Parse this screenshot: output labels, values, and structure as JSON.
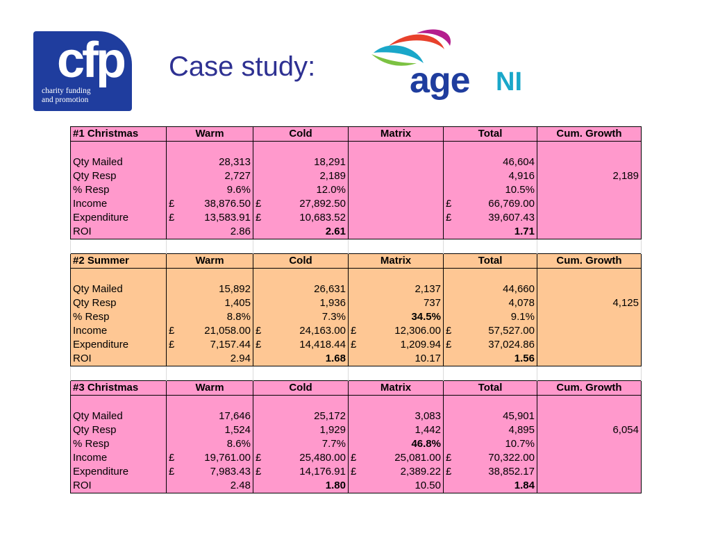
{
  "header": {
    "cfp_mark": "cfp",
    "cfp_tagline_1": "charity funding",
    "cfp_tagline_2": "and promotion",
    "title": "Case study:",
    "age_word": "age",
    "ni_word": "NI"
  },
  "columns": [
    "Warm",
    "Cold",
    "Matrix",
    "Total",
    "Cum. Growth"
  ],
  "sections": [
    {
      "title": "#1 Christmas",
      "color": "#ff99cc",
      "cum_growth": "2,189",
      "rows": {
        "qty_mailed": {
          "label": "Qty Mailed",
          "warm": "28,313",
          "cold": "18,291",
          "matrix": "",
          "total": "46,604"
        },
        "qty_resp": {
          "label": "Qty Resp",
          "warm": "2,727",
          "cold": "2,189",
          "matrix": "",
          "total": "4,916"
        },
        "pct_resp": {
          "label": "% Resp",
          "warm": "9.6%",
          "cold": "12.0%",
          "matrix": "",
          "total": "10.5%"
        },
        "income": {
          "label": "Income",
          "warm": "38,876.50",
          "cold": "27,892.50",
          "matrix": "",
          "total": "66,769.00"
        },
        "expenditure": {
          "label": "Expenditure",
          "warm": "13,583.91",
          "cold": "10,683.52",
          "matrix": "",
          "total": "39,607.43"
        },
        "roi": {
          "label": "ROI",
          "warm": "2.86",
          "cold": "2.61",
          "matrix": "",
          "total": "1.71"
        }
      }
    },
    {
      "title": "#2 Summer",
      "color": "#fec794",
      "cum_growth": "4,125",
      "rows": {
        "qty_mailed": {
          "label": "Qty Mailed",
          "warm": "15,892",
          "cold": "26,631",
          "matrix": "2,137",
          "total": "44,660"
        },
        "qty_resp": {
          "label": "Qty Resp",
          "warm": "1,405",
          "cold": "1,936",
          "matrix": "737",
          "total": "4,078"
        },
        "pct_resp": {
          "label": "% Resp",
          "warm": "8.8%",
          "cold": "7.3%",
          "matrix": "34.5%",
          "total": "9.1%"
        },
        "income": {
          "label": "Income",
          "warm": "21,058.00",
          "cold": "24,163.00",
          "matrix": "12,306.00",
          "total": "57,527.00"
        },
        "expenditure": {
          "label": "Expenditure",
          "warm": "7,157.44",
          "cold": "14,418.44",
          "matrix": "1,209.94",
          "total": "37,024.86"
        },
        "roi": {
          "label": "ROI",
          "warm": "2.94",
          "cold": "1.68",
          "matrix": "10.17",
          "total": "1.56"
        }
      }
    },
    {
      "title": "#3 Christmas",
      "color": "#ff99cc",
      "cum_growth": "6,054",
      "rows": {
        "qty_mailed": {
          "label": "Qty Mailed",
          "warm": "17,646",
          "cold": "25,172",
          "matrix": "3,083",
          "total": "45,901"
        },
        "qty_resp": {
          "label": "Qty Resp",
          "warm": "1,524",
          "cold": "1,929",
          "matrix": "1,442",
          "total": "4,895"
        },
        "pct_resp": {
          "label": "% Resp",
          "warm": "8.6%",
          "cold": "7.7%",
          "matrix": "46.8%",
          "total": "10.7%"
        },
        "income": {
          "label": "Income",
          "warm": "19,761.00",
          "cold": "25,480.00",
          "matrix": "25,081.00",
          "total": "70,322.00"
        },
        "expenditure": {
          "label": "Expenditure",
          "warm": "7,983.43",
          "cold": "14,176.91",
          "matrix": "2,389.22",
          "total": "38,852.17"
        },
        "roi": {
          "label": "ROI",
          "warm": "2.48",
          "cold": "1.80",
          "matrix": "10.50",
          "total": "1.84"
        }
      }
    }
  ],
  "currency_symbol": "£"
}
